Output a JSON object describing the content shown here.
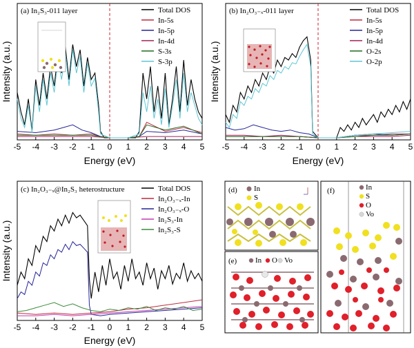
{
  "colors": {
    "total": "#000000",
    "in5s": "#c0283c",
    "in5p": "#24249a",
    "in4d": "#a0215a",
    "s3s": "#1f6b1f",
    "s3p": "#5ec6d4",
    "o2s": "#1f6b1f",
    "o2p": "#5ec6d4",
    "het_in": "#c0283c",
    "het_o": "#24249a",
    "het_sin": "#c23ab0",
    "het_s": "#3a8a3a",
    "fermi": "#d0202a",
    "atom_in": "#8a6a70",
    "atom_s": "#f0e020",
    "atom_o": "#e0202a",
    "atom_vo": "#d8d8d8"
  },
  "chart_data": [
    {
      "id": "a",
      "type": "line",
      "title": "(a) In₂S₃-011 layer",
      "xlabel": "Energy (eV)",
      "ylabel": "Intensity (a.u.)",
      "xlim": [
        -5,
        5
      ],
      "ylim": [
        0,
        1
      ],
      "xticks": [
        "-5",
        "-4",
        "-3",
        "-2",
        "-1",
        "0",
        "1",
        "2",
        "3",
        "4",
        "5"
      ],
      "fermi_level": 0,
      "series": [
        {
          "name": "Total DOS",
          "color_key": "total",
          "x": [
            -5,
            -4.8,
            -4.6,
            -4.4,
            -4.2,
            -4,
            -3.8,
            -3.6,
            -3.4,
            -3.2,
            -3,
            -2.8,
            -2.6,
            -2.4,
            -2.2,
            -2,
            -1.8,
            -1.6,
            -1.4,
            -1.2,
            -1,
            -0.8,
            -0.6,
            -0.5,
            -0.3,
            0,
            0.5,
            1,
            1.4,
            1.6,
            1.8,
            2,
            2.2,
            2.4,
            2.6,
            2.8,
            3,
            3.2,
            3.4,
            3.6,
            3.8,
            4,
            4.2,
            4.4,
            4.6,
            4.8,
            5
          ],
          "y": [
            0.35,
            0.2,
            0.1,
            0.3,
            0.05,
            0.45,
            0.25,
            0.5,
            0.3,
            0.55,
            0.4,
            0.65,
            0.5,
            0.7,
            0.45,
            0.72,
            0.55,
            0.68,
            0.4,
            0.62,
            0.45,
            0.5,
            0.25,
            0.05,
            0,
            0,
            0,
            0,
            0,
            0.05,
            0.5,
            0.3,
            0.55,
            0.2,
            0.4,
            0.15,
            0.5,
            0.1,
            0.3,
            0.55,
            0.2,
            0.6,
            0.25,
            0.45,
            0.3,
            0.2,
            0.15
          ]
        },
        {
          "name": "In-5s",
          "color_key": "in5s",
          "x": [
            -5,
            -4,
            -3,
            -2,
            -1,
            -0.5,
            0,
            1,
            1.6,
            2,
            3,
            4,
            5
          ],
          "y": [
            0.03,
            0.02,
            0.03,
            0.02,
            0.03,
            0.01,
            0,
            0,
            0.01,
            0.12,
            0.05,
            0.08,
            0.04
          ]
        },
        {
          "name": "In-5p",
          "color_key": "in5p",
          "x": [
            -5,
            -4,
            -3,
            -2.5,
            -2,
            -1.5,
            -1,
            -0.5,
            0,
            1,
            1.6,
            2,
            3,
            4,
            5
          ],
          "y": [
            0.05,
            0.04,
            0.06,
            0.08,
            0.1,
            0.06,
            0.04,
            0.01,
            0,
            0,
            0.01,
            0.05,
            0.04,
            0.06,
            0.03
          ]
        },
        {
          "name": "In-4d",
          "color_key": "in4d",
          "x": [
            -5,
            -4,
            -3,
            -2,
            -1,
            0,
            1,
            2,
            3,
            4,
            5
          ],
          "y": [
            0.01,
            0.01,
            0.01,
            0.01,
            0.01,
            0,
            0,
            0.01,
            0.01,
            0.01,
            0.01
          ]
        },
        {
          "name": "S-3s",
          "color_key": "s3s",
          "x": [
            -5,
            -4,
            -3,
            -2,
            -1,
            0,
            1,
            1.6,
            2,
            3,
            4,
            5
          ],
          "y": [
            0.02,
            0.02,
            0.02,
            0.02,
            0.02,
            0,
            0,
            0.01,
            0.1,
            0.06,
            0.09,
            0.03
          ]
        },
        {
          "name": "S-3p",
          "color_key": "s3p",
          "x": [
            -5,
            -4.8,
            -4.6,
            -4.4,
            -4.2,
            -4,
            -3.8,
            -3.6,
            -3.4,
            -3.2,
            -3,
            -2.8,
            -2.6,
            -2.4,
            -2.2,
            -2,
            -1.8,
            -1.6,
            -1.4,
            -1.2,
            -1,
            -0.8,
            -0.6,
            -0.5,
            0,
            1,
            1.6,
            1.8,
            2,
            2.2,
            2.4,
            2.6,
            2.8,
            3,
            3.2,
            3.4,
            3.6,
            3.8,
            4,
            4.2,
            4.4,
            4.6,
            4.8,
            5
          ],
          "y": [
            0.3,
            0.15,
            0.08,
            0.25,
            0.04,
            0.4,
            0.2,
            0.45,
            0.25,
            0.5,
            0.35,
            0.6,
            0.45,
            0.66,
            0.4,
            0.68,
            0.5,
            0.63,
            0.35,
            0.58,
            0.4,
            0.46,
            0.2,
            0.03,
            0,
            0,
            0.03,
            0.35,
            0.2,
            0.4,
            0.15,
            0.3,
            0.1,
            0.38,
            0.08,
            0.25,
            0.45,
            0.15,
            0.5,
            0.2,
            0.35,
            0.25,
            0.15,
            0.1
          ]
        }
      ]
    },
    {
      "id": "b",
      "type": "line",
      "title": "(b) In₂O₃₋ₓ-011 layer",
      "xlabel": "Energy (eV)",
      "ylabel": "Intensity (a.u.)",
      "xlim": [
        -5,
        5
      ],
      "ylim": [
        0,
        1
      ],
      "xticks": [
        "-5",
        "-4",
        "-3",
        "-2",
        "-1",
        "0",
        "1",
        "2",
        "3",
        "4",
        "5"
      ],
      "fermi_level": 0,
      "series": [
        {
          "name": "Total DOS",
          "color_key": "total",
          "x": [
            -5,
            -4.8,
            -4.6,
            -4.4,
            -4.2,
            -4,
            -3.8,
            -3.6,
            -3.4,
            -3.2,
            -3,
            -2.8,
            -2.6,
            -2.4,
            -2.2,
            -2,
            -1.8,
            -1.6,
            -1.4,
            -1.2,
            -1,
            -0.8,
            -0.6,
            -0.4,
            -0.3,
            0,
            0.5,
            1,
            1.2,
            1.4,
            1.6,
            1.8,
            2,
            2.2,
            2.4,
            2.6,
            2.8,
            3,
            3.2,
            3.4,
            3.6,
            3.8,
            4,
            4.2,
            4.4,
            4.6,
            4.8,
            5
          ],
          "y": [
            0.18,
            0.12,
            0.25,
            0.2,
            0.35,
            0.3,
            0.4,
            0.35,
            0.45,
            0.4,
            0.5,
            0.45,
            0.55,
            0.5,
            0.6,
            0.55,
            0.62,
            0.6,
            0.65,
            0.62,
            0.7,
            0.75,
            0.78,
            0.6,
            0.05,
            0,
            0,
            0,
            0.08,
            0.05,
            0.1,
            0.06,
            0.12,
            0.08,
            0.15,
            0.1,
            0.14,
            0.18,
            0.12,
            0.2,
            0.16,
            0.22,
            0.18,
            0.25,
            0.2,
            0.28,
            0.22,
            0.3
          ]
        },
        {
          "name": "In-5s",
          "color_key": "in5s",
          "x": [
            -5,
            -3,
            -1,
            0,
            1,
            2,
            3,
            4,
            5
          ],
          "y": [
            0.01,
            0.01,
            0.01,
            0,
            0,
            0.02,
            0.02,
            0.03,
            0.03
          ]
        },
        {
          "name": "In-5p",
          "color_key": "in5p",
          "x": [
            -5,
            -4.5,
            -4,
            -3.5,
            -3,
            -2.5,
            -2,
            -1.5,
            -1,
            -0.5,
            0,
            1,
            2,
            3,
            4,
            5
          ],
          "y": [
            0.08,
            0.06,
            0.07,
            0.1,
            0.08,
            0.06,
            0.05,
            0.06,
            0.04,
            0.03,
            0,
            0,
            0.02,
            0.03,
            0.02,
            0.03
          ]
        },
        {
          "name": "In-4d",
          "color_key": "in4d",
          "x": [
            -5,
            -4,
            -3,
            -2,
            -1,
            0,
            1,
            2,
            3,
            4,
            5
          ],
          "y": [
            0.02,
            0.02,
            0.01,
            0.02,
            0.01,
            0,
            0,
            0.01,
            0.01,
            0.01,
            0.02
          ]
        },
        {
          "name": "O-2s",
          "color_key": "o2s",
          "x": [
            -5,
            -3,
            -1,
            0,
            1,
            2,
            3,
            4,
            5
          ],
          "y": [
            0.01,
            0.01,
            0.01,
            0,
            0,
            0.01,
            0.02,
            0.02,
            0.03
          ]
        },
        {
          "name": "O-2p",
          "color_key": "o2p",
          "x": [
            -5,
            -4.8,
            -4.6,
            -4.4,
            -4.2,
            -4,
            -3.8,
            -3.6,
            -3.4,
            -3.2,
            -3,
            -2.8,
            -2.6,
            -2.4,
            -2.2,
            -2,
            -1.8,
            -1.6,
            -1.4,
            -1.2,
            -1,
            -0.8,
            -0.6,
            -0.4,
            -0.3,
            0,
            1,
            2,
            3,
            4,
            5
          ],
          "y": [
            0.12,
            0.08,
            0.18,
            0.15,
            0.28,
            0.25,
            0.32,
            0.3,
            0.38,
            0.35,
            0.42,
            0.4,
            0.48,
            0.45,
            0.52,
            0.5,
            0.55,
            0.53,
            0.58,
            0.57,
            0.63,
            0.68,
            0.72,
            0.55,
            0.03,
            0,
            0,
            0.02,
            0.03,
            0.04,
            0.05
          ]
        }
      ]
    },
    {
      "id": "c",
      "type": "line",
      "title": "(c) In₂O₃₋ₓ@In₂S₃ heterostructure",
      "xlabel": "Energy (eV)",
      "ylabel": "Intensity (a.u.)",
      "xlim": [
        -5,
        5
      ],
      "ylim": [
        0,
        1
      ],
      "xticks": [
        "-5",
        "-4",
        "-3",
        "-2",
        "-1",
        "0",
        "1",
        "2",
        "3",
        "4",
        "5"
      ],
      "series": [
        {
          "name": "Total DOS",
          "color_key": "total",
          "x": [
            -5,
            -4.8,
            -4.6,
            -4.4,
            -4.2,
            -4,
            -3.8,
            -3.6,
            -3.4,
            -3.2,
            -3,
            -2.8,
            -2.6,
            -2.4,
            -2.2,
            -2,
            -1.8,
            -1.6,
            -1.4,
            -1.2,
            -1.1,
            -1,
            -0.8,
            -0.6,
            -0.4,
            -0.2,
            0,
            0.2,
            0.4,
            0.6,
            0.8,
            1,
            1.2,
            1.4,
            1.6,
            1.8,
            2,
            2.2,
            2.4,
            2.6,
            2.8,
            3,
            3.2,
            3.4,
            3.6,
            3.8,
            4,
            4.2,
            4.4,
            4.6,
            4.8,
            5
          ],
          "y": [
            0.25,
            0.35,
            0.3,
            0.45,
            0.4,
            0.55,
            0.5,
            0.62,
            0.58,
            0.7,
            0.66,
            0.75,
            0.7,
            0.78,
            0.72,
            0.8,
            0.76,
            0.78,
            0.74,
            0.7,
            0.3,
            0.15,
            0.35,
            0.2,
            0.4,
            0.25,
            0.45,
            0.3,
            0.35,
            0.22,
            0.4,
            0.28,
            0.45,
            0.3,
            0.35,
            0.25,
            0.42,
            0.3,
            0.38,
            0.22,
            0.36,
            0.3,
            0.4,
            0.26,
            0.34,
            0.3,
            0.42,
            0.28,
            0.36,
            0.3,
            0.34,
            0.28
          ]
        },
        {
          "name": "In₂O₃₋ₓ-In",
          "color_key": "het_in",
          "x": [
            -5,
            -4,
            -3,
            -2,
            -1,
            0,
            1,
            2,
            3,
            4,
            5
          ],
          "y": [
            0.04,
            0.03,
            0.04,
            0.03,
            0.04,
            0.05,
            0.07,
            0.08,
            0.1,
            0.12,
            0.14
          ]
        },
        {
          "name": "In₂O₃₋ₓ-O",
          "color_key": "het_o",
          "x": [
            -5,
            -4.8,
            -4.6,
            -4.4,
            -4.2,
            -4,
            -3.8,
            -3.6,
            -3.4,
            -3.2,
            -3,
            -2.8,
            -2.6,
            -2.4,
            -2.2,
            -2,
            -1.8,
            -1.6,
            -1.4,
            -1.2,
            -1.1,
            -1,
            -0.5,
            0,
            1,
            2,
            3,
            4,
            5
          ],
          "y": [
            0.15,
            0.2,
            0.18,
            0.28,
            0.25,
            0.35,
            0.32,
            0.42,
            0.4,
            0.48,
            0.45,
            0.52,
            0.5,
            0.56,
            0.52,
            0.58,
            0.55,
            0.56,
            0.53,
            0.5,
            0.1,
            0.03,
            0.02,
            0.03,
            0.04,
            0.05,
            0.06,
            0.07,
            0.08
          ]
        },
        {
          "name": "In₂S₃-In",
          "color_key": "het_sin",
          "x": [
            -5,
            -4,
            -3,
            -2,
            -1,
            0,
            1,
            2,
            3,
            4,
            5
          ],
          "y": [
            0.02,
            0.02,
            0.03,
            0.02,
            0.03,
            0.04,
            0.05,
            0.06,
            0.07,
            0.08,
            0.09
          ]
        },
        {
          "name": "In₂S₃-S",
          "color_key": "het_s",
          "x": [
            -5,
            -4.5,
            -4,
            -3.5,
            -3,
            -2.5,
            -2,
            -1.5,
            -1,
            -0.5,
            0,
            0.5,
            1,
            1.5,
            2,
            2.5,
            3,
            3.5,
            4,
            4.5,
            5
          ],
          "y": [
            0.05,
            0.06,
            0.08,
            0.1,
            0.12,
            0.09,
            0.11,
            0.08,
            0.06,
            0.05,
            0.07,
            0.06,
            0.08,
            0.07,
            0.09,
            0.06,
            0.08,
            0.07,
            0.09,
            0.06,
            0.07
          ]
        }
      ]
    }
  ],
  "panels": {
    "d": {
      "tag": "(d)",
      "legend": [
        {
          "key": "atom_in",
          "label": "In"
        },
        {
          "key": "atom_s",
          "label": "S"
        }
      ]
    },
    "e": {
      "tag": "(e)",
      "legend": [
        {
          "key": "atom_in",
          "label": "In"
        },
        {
          "key": "atom_o",
          "label": "O"
        },
        {
          "key": "atom_vo",
          "label": "Vo"
        }
      ]
    },
    "f": {
      "tag": "(f)",
      "legend": [
        {
          "key": "atom_in",
          "label": "In"
        },
        {
          "key": "atom_s",
          "label": "S"
        },
        {
          "key": "atom_o",
          "label": "O"
        },
        {
          "key": "atom_vo",
          "label": "Vo"
        }
      ]
    }
  }
}
